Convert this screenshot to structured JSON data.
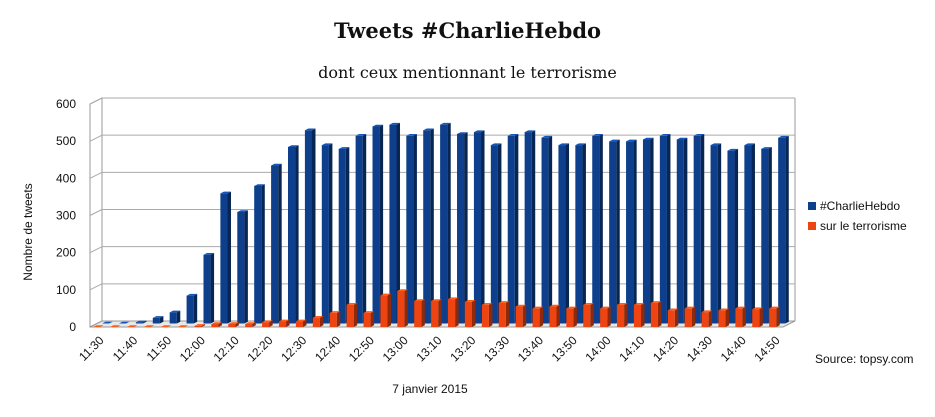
{
  "chart_data": {
    "type": "bar",
    "title": "Tweets #CharlieHebdo",
    "subtitle": "dont ceux mentionnant le terrorisme",
    "xlabel": "7 janvier 2015",
    "ylabel": "Nombre de tweets",
    "source": "Source: topsy.com",
    "ylim": [
      0,
      600
    ],
    "yticks": [
      0,
      100,
      200,
      300,
      400,
      500,
      600
    ],
    "grid": true,
    "legend_position": "right",
    "x": [
      "11:30",
      "11:35",
      "11:40",
      "11:45",
      "11:50",
      "11:55",
      "12:00",
      "12:05",
      "12:10",
      "12:15",
      "12:20",
      "12:25",
      "12:30",
      "12:35",
      "12:40",
      "12:45",
      "12:50",
      "12:55",
      "13:00",
      "13:05",
      "13:10",
      "13:15",
      "13:20",
      "13:25",
      "13:30",
      "13:35",
      "13:40",
      "13:45",
      "13:50",
      "13:55",
      "14:00",
      "14:05",
      "14:10",
      "14:15",
      "14:20",
      "14:25",
      "14:30",
      "14:35",
      "14:40",
      "14:45",
      "14:50"
    ],
    "xtick_labels": [
      "11:30",
      "11:40",
      "11:50",
      "12:00",
      "12:10",
      "12:20",
      "12:30",
      "12:40",
      "12:50",
      "13:00",
      "13:10",
      "13:20",
      "13:30",
      "13:40",
      "13:50",
      "14:00",
      "14:10",
      "14:20",
      "14:30",
      "14:40",
      "14:50"
    ],
    "series": [
      {
        "name": "#CharlieHebdo",
        "color": "#0d3f8c",
        "values": [
          0,
          0,
          3,
          15,
          30,
          75,
          185,
          350,
          300,
          370,
          425,
          475,
          520,
          480,
          470,
          505,
          530,
          535,
          505,
          520,
          535,
          510,
          515,
          480,
          505,
          515,
          500,
          480,
          480,
          505,
          490,
          490,
          495,
          505,
          495,
          505,
          480,
          465,
          480,
          470,
          500
        ]
      },
      {
        "name": "sur le terrorisme",
        "color": "#ee4411",
        "values": [
          0,
          0,
          0,
          0,
          0,
          0,
          3,
          8,
          8,
          8,
          13,
          15,
          15,
          25,
          38,
          60,
          38,
          85,
          97,
          70,
          70,
          75,
          68,
          60,
          65,
          55,
          50,
          55,
          50,
          60,
          50,
          60,
          60,
          65,
          45,
          50,
          40,
          45,
          50,
          48,
          50
        ]
      }
    ]
  }
}
